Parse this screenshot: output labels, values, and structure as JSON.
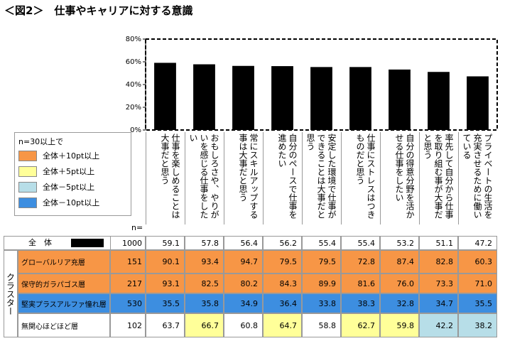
{
  "title": "＜図2＞　仕事やキャリアに対する意識",
  "chart_data": {
    "type": "bar",
    "categories": [
      "仕事を楽しめることは大事だと思う",
      "おもしろさや、やりがいを感じる仕事をしたい",
      "常にスキルアップする事は大事だと思う",
      "自分のペースで仕事を進めたい",
      "安定した環境で仕事ができることは大事だと思う",
      "仕事にストレスはつきものだと思う",
      "自分の得意分野を活かせる仕事をしたい",
      "率先して自分から仕事を取り組む事が大事だと思う",
      "プライベートの生活を充実させるために働いている"
    ],
    "series": [
      {
        "name": "全　体",
        "color": "#000000",
        "values": [
          59.1,
          57.8,
          56.4,
          56.2,
          55.4,
          55.4,
          53.2,
          51.1,
          47.2
        ]
      }
    ],
    "ylim": [
      0,
      80
    ],
    "yticks": [
      {
        "value": 0,
        "label": "0%"
      },
      {
        "value": 20,
        "label": "20%"
      },
      {
        "value": 40,
        "label": "40%"
      },
      {
        "value": 60,
        "label": "60%"
      },
      {
        "value": 80,
        "label": "80%"
      }
    ],
    "grid": false
  },
  "legend": {
    "title": "n=30以上で",
    "items": [
      {
        "label": "全体＋10pt以上",
        "color": "#f79646"
      },
      {
        "label": "全体＋5pt以上",
        "color": "#ffff99"
      },
      {
        "label": "全体－5pt以上",
        "color": "#b7dee8"
      },
      {
        "label": "全体－10pt以上",
        "color": "#3d8ee0"
      }
    ]
  },
  "table": {
    "n_header": "n=",
    "total_n": "1000",
    "group_label": "クラスター",
    "rows": [
      {
        "label": "グローバルリア充層",
        "n": "151",
        "label_color": "#f79646",
        "values": [
          "90.1",
          "93.4",
          "94.7",
          "79.5",
          "79.5",
          "72.8",
          "87.4",
          "82.8",
          "60.3"
        ],
        "colors": [
          "#f79646",
          "#f79646",
          "#f79646",
          "#f79646",
          "#f79646",
          "#f79646",
          "#f79646",
          "#f79646",
          "#f79646"
        ]
      },
      {
        "label": "保守的ガラパゴス層",
        "n": "217",
        "label_color": "#f79646",
        "values": [
          "93.1",
          "82.5",
          "80.2",
          "84.3",
          "89.9",
          "81.6",
          "76.0",
          "73.3",
          "71.0"
        ],
        "colors": [
          "#f79646",
          "#f79646",
          "#f79646",
          "#f79646",
          "#f79646",
          "#f79646",
          "#f79646",
          "#f79646",
          "#f79646"
        ]
      },
      {
        "label": "堅実プラスアルファ憧れ層",
        "n": "530",
        "label_color": "#3d8ee0",
        "values": [
          "35.5",
          "35.8",
          "34.9",
          "36.4",
          "33.8",
          "38.3",
          "32.8",
          "34.7",
          "35.5"
        ],
        "colors": [
          "#3d8ee0",
          "#3d8ee0",
          "#3d8ee0",
          "#3d8ee0",
          "#3d8ee0",
          "#3d8ee0",
          "#3d8ee0",
          "#3d8ee0",
          "#3d8ee0"
        ]
      },
      {
        "label": "無関心ほどほど層",
        "n": "102",
        "label_color": "#ffffff",
        "values": [
          "63.7",
          "66.7",
          "60.8",
          "64.7",
          "58.8",
          "62.7",
          "59.8",
          "42.2",
          "38.2"
        ],
        "colors": [
          "#ffffff",
          "#ffff99",
          "#ffffff",
          "#ffff99",
          "#ffffff",
          "#ffff99",
          "#ffff99",
          "#b7dee8",
          "#b7dee8"
        ]
      }
    ]
  }
}
